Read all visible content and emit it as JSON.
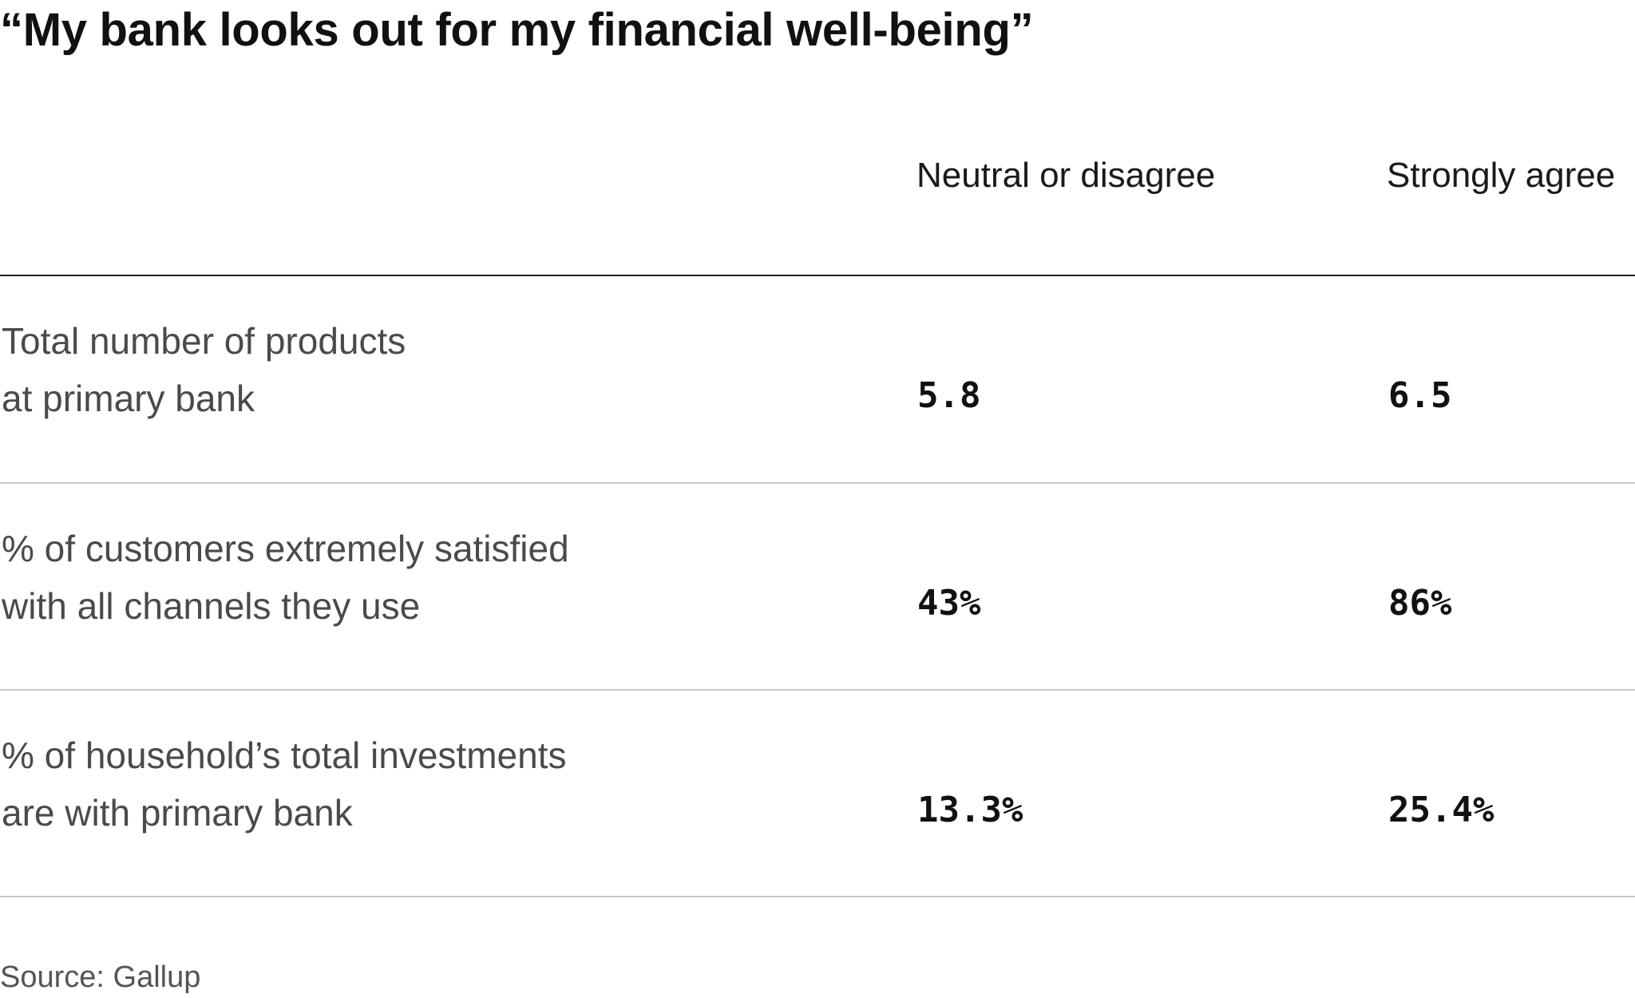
{
  "chart_data": {
    "type": "table",
    "title": "“My bank looks out for my financial well-being”",
    "columns": [
      "Neutral or disagree",
      "Strongly agree"
    ],
    "rows": [
      {
        "label_lines": [
          "Total number of products",
          "at primary bank"
        ],
        "values": [
          "5.8",
          "6.5"
        ]
      },
      {
        "label_lines": [
          "% of customers extremely satisfied",
          "with all channels they use"
        ],
        "values": [
          "43%",
          "86%"
        ]
      },
      {
        "label_lines": [
          "% of household’s total investments",
          "are with primary bank"
        ],
        "values": [
          "13.3%",
          "25.4%"
        ]
      }
    ],
    "source": "Source: Gallup"
  }
}
